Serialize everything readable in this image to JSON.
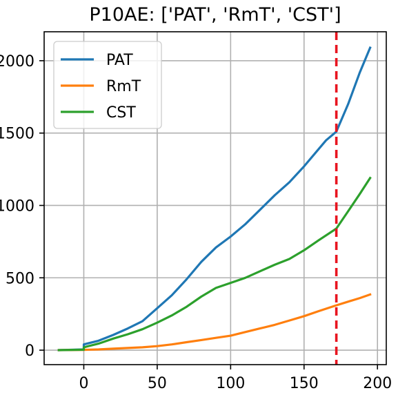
{
  "chart_data": {
    "type": "line",
    "title": "P10AE: ['PAT', 'RmT', 'CST']",
    "xlabel": "",
    "ylabel": "",
    "xlim": [
      -27,
      206
    ],
    "ylim": [
      -100,
      2200
    ],
    "x_ticks": [
      0,
      50,
      100,
      150,
      200
    ],
    "x_tick_labels": [
      "0",
      "50",
      "100",
      "150",
      "200"
    ],
    "y_ticks": [
      0,
      500,
      1000,
      1500,
      2000
    ],
    "y_tick_labels": [
      "0",
      "500",
      "1000",
      "1500",
      "2000"
    ],
    "grid": true,
    "legend_position": "top-left",
    "vertical_line": {
      "x": 172,
      "color": "#e8141f",
      "style": "dashed"
    },
    "series": [
      {
        "name": "PAT",
        "color": "#1f77b4",
        "points": [
          [
            -17,
            0
          ],
          [
            0,
            5
          ],
          [
            0,
            40
          ],
          [
            10,
            65
          ],
          [
            20,
            105
          ],
          [
            30,
            150
          ],
          [
            40,
            200
          ],
          [
            50,
            290
          ],
          [
            60,
            380
          ],
          [
            70,
            490
          ],
          [
            80,
            610
          ],
          [
            90,
            710
          ],
          [
            100,
            785
          ],
          [
            110,
            870
          ],
          [
            120,
            970
          ],
          [
            130,
            1070
          ],
          [
            140,
            1160
          ],
          [
            150,
            1270
          ],
          [
            160,
            1390
          ],
          [
            165,
            1450
          ],
          [
            172,
            1510
          ],
          [
            180,
            1700
          ],
          [
            188,
            1920
          ],
          [
            195,
            2090
          ]
        ]
      },
      {
        "name": "RmT",
        "color": "#ff7f0e",
        "points": [
          [
            -17,
            0
          ],
          [
            0,
            2
          ],
          [
            10,
            5
          ],
          [
            20,
            10
          ],
          [
            30,
            15
          ],
          [
            40,
            20
          ],
          [
            50,
            28
          ],
          [
            60,
            40
          ],
          [
            70,
            55
          ],
          [
            80,
            70
          ],
          [
            90,
            85
          ],
          [
            100,
            100
          ],
          [
            110,
            125
          ],
          [
            120,
            150
          ],
          [
            130,
            175
          ],
          [
            140,
            205
          ],
          [
            150,
            235
          ],
          [
            160,
            270
          ],
          [
            172,
            310
          ],
          [
            180,
            335
          ],
          [
            188,
            360
          ],
          [
            195,
            385
          ]
        ]
      },
      {
        "name": "CST",
        "color": "#2ca02c",
        "points": [
          [
            -17,
            0
          ],
          [
            0,
            3
          ],
          [
            0,
            20
          ],
          [
            10,
            45
          ],
          [
            20,
            80
          ],
          [
            30,
            110
          ],
          [
            40,
            145
          ],
          [
            50,
            190
          ],
          [
            60,
            240
          ],
          [
            70,
            300
          ],
          [
            80,
            370
          ],
          [
            90,
            430
          ],
          [
            100,
            465
          ],
          [
            110,
            500
          ],
          [
            120,
            545
          ],
          [
            130,
            590
          ],
          [
            140,
            630
          ],
          [
            150,
            690
          ],
          [
            160,
            760
          ],
          [
            172,
            840
          ],
          [
            180,
            960
          ],
          [
            188,
            1080
          ],
          [
            195,
            1190
          ]
        ]
      }
    ]
  }
}
